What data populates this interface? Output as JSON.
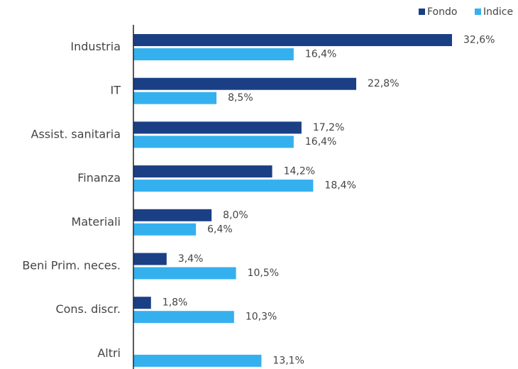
{
  "chart_data": {
    "type": "hbar",
    "categories": [
      "Industria",
      "IT",
      "Assist. sanitaria",
      "Finanza",
      "Materiali",
      "Beni Prim. neces.",
      "Cons. discr.",
      "Altri"
    ],
    "series": [
      {
        "name": "Fondo",
        "color": "#1b3f85",
        "values": [
          32.6,
          22.8,
          17.2,
          14.2,
          8.0,
          3.4,
          1.8,
          null
        ],
        "value_labels": [
          "32,6%",
          "22,8%",
          "17,2%",
          "14,2%",
          "8,0%",
          "3,4%",
          "1,8%",
          null
        ]
      },
      {
        "name": "Indice",
        "color": "#35b0ee",
        "values": [
          16.4,
          8.5,
          16.4,
          18.4,
          6.4,
          10.5,
          10.3,
          13.1
        ],
        "value_labels": [
          "16,4%",
          "8,5%",
          "16,4%",
          "18,4%",
          "6,4%",
          "10,5%",
          "10,3%",
          "13,1%"
        ]
      }
    ],
    "legend": "top-right"
  }
}
